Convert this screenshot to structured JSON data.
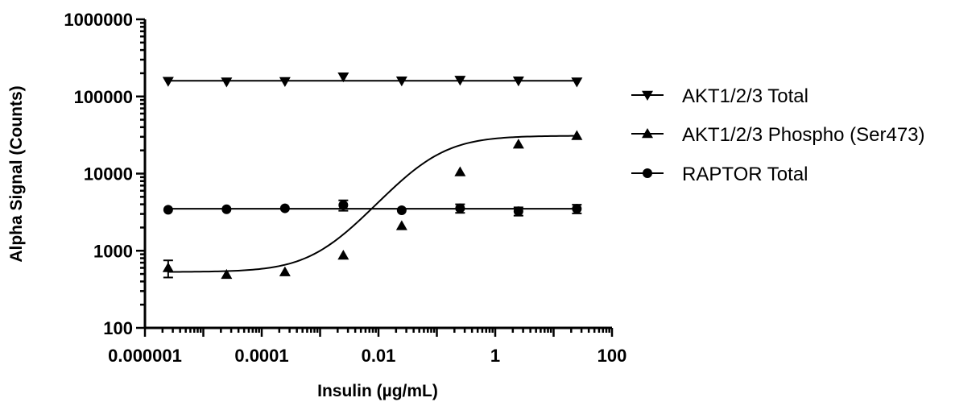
{
  "chart_data": {
    "type": "scatter",
    "xlabel": "Insulin (µg/mL)",
    "ylabel": "Alpha Signal (Counts)",
    "xscale": "log",
    "yscale": "log",
    "xlim": [
      1e-06,
      100
    ],
    "ylim": [
      100,
      1000000
    ],
    "xticks": [
      {
        "value": 1e-06,
        "label": "0.000001"
      },
      {
        "value": 0.0001,
        "label": "0.0001"
      },
      {
        "value": 0.01,
        "label": "0.01"
      },
      {
        "value": 1,
        "label": "1"
      },
      {
        "value": 100,
        "label": "100"
      }
    ],
    "yticks": [
      {
        "value": 100,
        "label": "100"
      },
      {
        "value": 1000,
        "label": "1000"
      },
      {
        "value": 10000,
        "label": "10000"
      },
      {
        "value": 100000,
        "label": "100000"
      },
      {
        "value": 1000000,
        "label": "1000000"
      }
    ],
    "legend_position": "right",
    "grid": false,
    "series": [
      {
        "name": "AKT1/2/3 Total",
        "marker": "triangle-down",
        "x": [
          2.5e-06,
          2.5e-05,
          0.00025,
          0.0025,
          0.025,
          0.25,
          2.5,
          25
        ],
        "y": [
          158000,
          155000,
          157000,
          180000,
          160000,
          163000,
          160000,
          155000
        ],
        "err": [
          0,
          0,
          0,
          0,
          0,
          0,
          0,
          0
        ],
        "fit": {
          "type": "constant",
          "value": 160000
        }
      },
      {
        "name": "AKT1/2/3 Phospho (Ser473)",
        "marker": "triangle-up",
        "x": [
          2.5e-06,
          2.5e-05,
          0.00025,
          0.0025,
          0.025,
          0.25,
          2.5,
          25
        ],
        "y": [
          600,
          490,
          530,
          870,
          2100,
          10500,
          24000,
          31000
        ],
        "err": [
          150,
          0,
          0,
          0,
          0,
          0,
          0,
          0
        ],
        "fit": {
          "type": "sigmoid",
          "bottom": 530,
          "top": 31000,
          "log_ec50": -1.1,
          "hill": 0.95
        }
      },
      {
        "name": "RAPTOR Total",
        "marker": "circle",
        "x": [
          2.5e-06,
          2.5e-05,
          0.00025,
          0.0025,
          0.025,
          0.25,
          2.5,
          25
        ],
        "y": [
          3400,
          3450,
          3550,
          3900,
          3350,
          3550,
          3250,
          3500
        ],
        "err": [
          0,
          0,
          0,
          600,
          0,
          450,
          400,
          450
        ],
        "fit": {
          "type": "constant",
          "value": 3500
        }
      }
    ]
  }
}
